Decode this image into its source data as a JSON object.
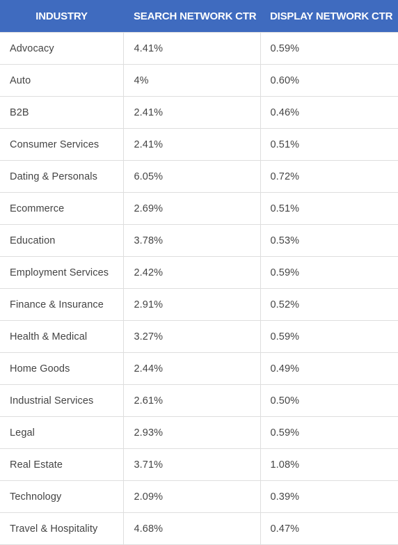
{
  "chart_data": {
    "type": "table",
    "columns": [
      "INDUSTRY",
      "SEARCH NETWORK CTR",
      "DISPLAY NETWORK CTR"
    ],
    "rows": [
      [
        "Advocacy",
        "4.41%",
        "0.59%"
      ],
      [
        "Auto",
        "4%",
        "0.60%"
      ],
      [
        "B2B",
        "2.41%",
        "0.46%"
      ],
      [
        "Consumer Services",
        "2.41%",
        "0.51%"
      ],
      [
        "Dating & Personals",
        "6.05%",
        "0.72%"
      ],
      [
        "Ecommerce",
        "2.69%",
        "0.51%"
      ],
      [
        "Education",
        "3.78%",
        "0.53%"
      ],
      [
        "Employment Services",
        "2.42%",
        "0.59%"
      ],
      [
        "Finance & Insurance",
        "2.91%",
        "0.52%"
      ],
      [
        "Health & Medical",
        "3.27%",
        "0.59%"
      ],
      [
        "Home Goods",
        "2.44%",
        "0.49%"
      ],
      [
        "Industrial Services",
        "2.61%",
        "0.50%"
      ],
      [
        "Legal",
        "2.93%",
        "0.59%"
      ],
      [
        "Real Estate",
        "3.71%",
        "1.08%"
      ],
      [
        "Technology",
        "2.09%",
        "0.39%"
      ],
      [
        "Travel & Hospitality",
        "4.68%",
        "0.47%"
      ]
    ]
  },
  "colors": {
    "header_background": "#3f6bbf",
    "header_text": "#ffffff",
    "cell_text": "#444444",
    "grid_lines": "#dedede"
  }
}
